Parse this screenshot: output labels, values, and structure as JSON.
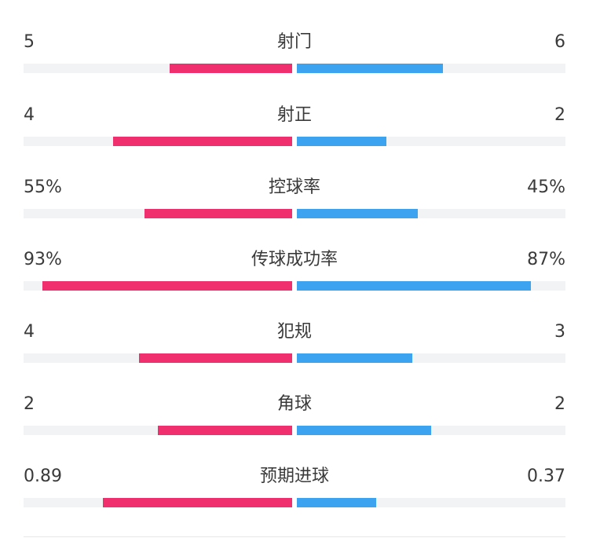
{
  "colors": {
    "home": "#f0306e",
    "away": "#3ba3f0",
    "track": "#f2f3f5"
  },
  "stats": [
    {
      "label": "射门",
      "home": "5",
      "away": "6",
      "home_fill": 0.455,
      "away_fill": 0.545
    },
    {
      "label": "射正",
      "home": "4",
      "away": "2",
      "home_fill": 0.667,
      "away_fill": 0.333
    },
    {
      "label": "控球率",
      "home": "55%",
      "away": "45%",
      "home_fill": 0.55,
      "away_fill": 0.45
    },
    {
      "label": "传球成功率",
      "home": "93%",
      "away": "87%",
      "home_fill": 0.93,
      "away_fill": 0.87
    },
    {
      "label": "犯规",
      "home": "4",
      "away": "3",
      "home_fill": 0.571,
      "away_fill": 0.429
    },
    {
      "label": "角球",
      "home": "2",
      "away": "2",
      "home_fill": 0.5,
      "away_fill": 0.5
    },
    {
      "label": "预期进球",
      "home": "0.89",
      "away": "0.37",
      "home_fill": 0.706,
      "away_fill": 0.294
    }
  ]
}
